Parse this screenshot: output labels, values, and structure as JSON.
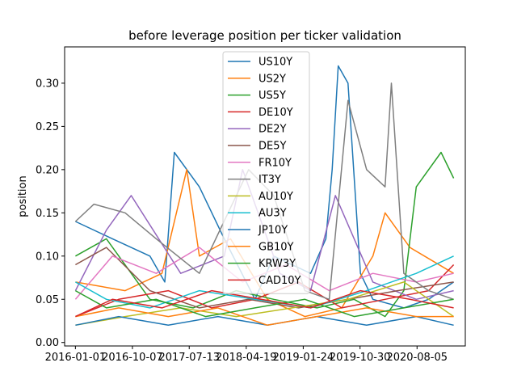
{
  "chart_data": {
    "type": "line",
    "title": "before leverage position per ticker validation",
    "xlabel": "",
    "ylabel": "position",
    "x_range": [
      "2015-11-09",
      "2021-03-30"
    ],
    "ylim": [
      -0.004,
      0.342
    ],
    "x_ticks": [
      "2016-01-01",
      "2016-10-07",
      "2017-07-13",
      "2018-04-19",
      "2019-01-24",
      "2019-10-30",
      "2020-08-05"
    ],
    "y_ticks": [
      0.0,
      0.05,
      0.1,
      0.15,
      0.2,
      0.25,
      0.3
    ],
    "y_tick_labels": [
      "0.00",
      "0.05",
      "0.10",
      "0.15",
      "0.20",
      "0.25",
      "0.30"
    ],
    "grid": false,
    "legend_position": "top-center",
    "series": [
      {
        "name": "US10Y",
        "color": "#1f77b4",
        "x": [
          "2016-01-01",
          "2016-07-01",
          "2017-01-01",
          "2017-03-15",
          "2017-05-01",
          "2017-09-01",
          "2018-01-01",
          "2018-06-01",
          "2018-09-01",
          "2019-03-01",
          "2019-05-15",
          "2019-06-15",
          "2019-07-15",
          "2019-09-01",
          "2019-11-01",
          "2020-01-01",
          "2020-06-01",
          "2020-10-01",
          "2021-02-01"
        ],
        "values": [
          0.14,
          0.12,
          0.1,
          0.07,
          0.22,
          0.18,
          0.12,
          0.05,
          0.1,
          0.08,
          0.12,
          0.2,
          0.32,
          0.3,
          0.08,
          0.05,
          0.04,
          0.05,
          0.07
        ]
      },
      {
        "name": "US2Y",
        "color": "#ff7f0e",
        "x": [
          "2016-01-01",
          "2016-09-01",
          "2017-03-01",
          "2017-07-01",
          "2017-09-01",
          "2018-02-01",
          "2018-08-01",
          "2019-02-01",
          "2019-08-01",
          "2020-01-01",
          "2020-03-01",
          "2020-07-01",
          "2021-02-01"
        ],
        "values": [
          0.07,
          0.06,
          0.08,
          0.2,
          0.1,
          0.12,
          0.05,
          0.03,
          0.04,
          0.1,
          0.15,
          0.11,
          0.08
        ]
      },
      {
        "name": "US5Y",
        "color": "#2ca02c",
        "x": [
          "2016-01-01",
          "2016-06-01",
          "2017-01-01",
          "2017-08-01",
          "2018-03-01",
          "2018-09-01",
          "2019-04-01",
          "2019-10-01",
          "2020-03-01",
          "2020-06-01",
          "2020-08-01",
          "2020-12-01",
          "2021-02-01"
        ],
        "values": [
          0.1,
          0.12,
          0.05,
          0.04,
          0.06,
          0.05,
          0.04,
          0.05,
          0.03,
          0.06,
          0.18,
          0.22,
          0.19
        ]
      },
      {
        "name": "DE10Y",
        "color": "#d62728",
        "x": [
          "2016-01-01",
          "2016-08-01",
          "2017-04-01",
          "2017-11-01",
          "2018-06-01",
          "2019-01-01",
          "2019-08-01",
          "2020-03-01",
          "2020-10-01",
          "2021-02-01"
        ],
        "values": [
          0.03,
          0.05,
          0.06,
          0.04,
          0.05,
          0.07,
          0.04,
          0.05,
          0.06,
          0.09
        ]
      },
      {
        "name": "DE2Y",
        "color": "#9467bd",
        "x": [
          "2016-01-01",
          "2016-06-01",
          "2016-10-01",
          "2017-06-01",
          "2018-01-01",
          "2018-04-01",
          "2018-10-01",
          "2019-03-01",
          "2019-07-01",
          "2020-01-01",
          "2020-08-01",
          "2021-02-01"
        ],
        "values": [
          0.06,
          0.13,
          0.17,
          0.08,
          0.1,
          0.2,
          0.08,
          0.06,
          0.17,
          0.07,
          0.05,
          0.06
        ]
      },
      {
        "name": "DE5Y",
        "color": "#8c564b",
        "x": [
          "2016-01-01",
          "2016-06-01",
          "2017-01-01",
          "2017-09-01",
          "2018-05-01",
          "2019-01-01",
          "2019-09-01",
          "2020-05-01",
          "2021-02-01"
        ],
        "values": [
          0.09,
          0.11,
          0.06,
          0.04,
          0.05,
          0.04,
          0.05,
          0.06,
          0.07
        ]
      },
      {
        "name": "FR10Y",
        "color": "#e377c2",
        "x": [
          "2016-01-01",
          "2016-07-01",
          "2017-02-01",
          "2017-09-01",
          "2018-04-01",
          "2018-11-01",
          "2019-06-01",
          "2020-01-01",
          "2020-08-01",
          "2021-02-01"
        ],
        "values": [
          0.05,
          0.1,
          0.08,
          0.11,
          0.07,
          0.09,
          0.06,
          0.08,
          0.07,
          0.08
        ]
      },
      {
        "name": "IT3Y",
        "color": "#7f7f7f",
        "x": [
          "2016-01-01",
          "2016-04-01",
          "2016-09-01",
          "2017-02-01",
          "2017-09-01",
          "2018-05-01",
          "2018-09-01",
          "2019-02-01",
          "2019-06-01",
          "2019-09-01",
          "2019-12-01",
          "2020-03-01",
          "2020-04-01",
          "2020-06-01",
          "2020-10-01",
          "2021-02-01"
        ],
        "values": [
          0.14,
          0.16,
          0.15,
          0.12,
          0.08,
          0.2,
          0.17,
          0.06,
          0.05,
          0.28,
          0.2,
          0.18,
          0.3,
          0.08,
          0.06,
          0.05
        ]
      },
      {
        "name": "AU10Y",
        "color": "#bcbd22",
        "x": [
          "2016-01-01",
          "2016-09-01",
          "2017-06-01",
          "2018-03-01",
          "2018-12-01",
          "2019-09-01",
          "2020-06-01",
          "2021-02-01"
        ],
        "values": [
          0.02,
          0.03,
          0.04,
          0.03,
          0.04,
          0.05,
          0.07,
          0.03
        ]
      },
      {
        "name": "AU3Y",
        "color": "#17becf",
        "x": [
          "2016-01-01",
          "2016-06-01",
          "2017-01-01",
          "2017-09-01",
          "2018-06-01",
          "2019-03-01",
          "2019-12-01",
          "2020-08-01",
          "2021-02-01"
        ],
        "values": [
          0.07,
          0.05,
          0.04,
          0.06,
          0.05,
          0.04,
          0.06,
          0.08,
          0.1
        ]
      },
      {
        "name": "JP10Y",
        "color": "#1f77b4",
        "x": [
          "2016-01-01",
          "2016-08-01",
          "2017-04-01",
          "2017-12-01",
          "2018-08-01",
          "2019-04-01",
          "2019-12-01",
          "2020-08-01",
          "2021-02-01"
        ],
        "values": [
          0.02,
          0.03,
          0.02,
          0.03,
          0.02,
          0.03,
          0.02,
          0.03,
          0.02
        ]
      },
      {
        "name": "GB10Y",
        "color": "#ff7f0e",
        "x": [
          "2016-01-01",
          "2016-08-01",
          "2017-04-01",
          "2017-12-01",
          "2018-08-01",
          "2019-04-01",
          "2019-12-01",
          "2020-08-01",
          "2021-02-01"
        ],
        "values": [
          0.03,
          0.04,
          0.03,
          0.04,
          0.02,
          0.03,
          0.04,
          0.03,
          0.03
        ]
      },
      {
        "name": "KRW3Y",
        "color": "#2ca02c",
        "x": [
          "2016-01-01",
          "2016-06-01",
          "2017-02-01",
          "2017-10-01",
          "2018-06-01",
          "2019-02-01",
          "2019-10-01",
          "2020-06-01",
          "2021-02-01"
        ],
        "values": [
          0.06,
          0.04,
          0.05,
          0.03,
          0.04,
          0.05,
          0.03,
          0.04,
          0.05
        ]
      },
      {
        "name": "CAD10Y",
        "color": "#d62728",
        "x": [
          "2016-01-01",
          "2016-07-01",
          "2017-03-01",
          "2017-11-01",
          "2018-07-01",
          "2019-03-01",
          "2019-11-01",
          "2020-07-01",
          "2021-02-01"
        ],
        "values": [
          0.03,
          0.05,
          0.04,
          0.06,
          0.05,
          0.04,
          0.06,
          0.05,
          0.04
        ]
      }
    ]
  }
}
